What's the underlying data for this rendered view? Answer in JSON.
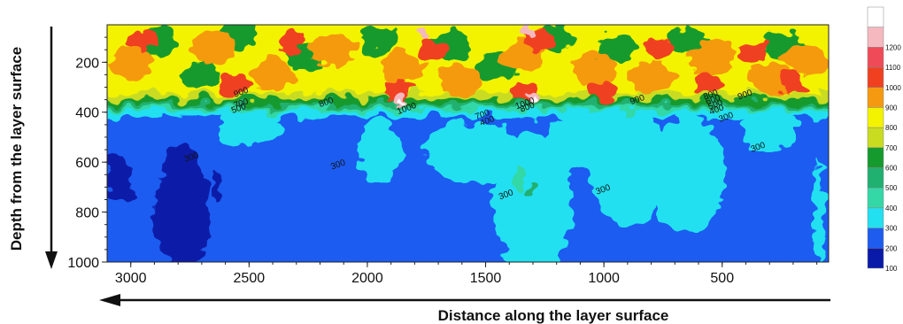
{
  "chart_data": {
    "type": "heatmap",
    "subtype": "filled-contour",
    "xlabel": "Distance along the layer surface",
    "ylabel": "Depth  from the layer surface",
    "x_direction": "reversed",
    "y_direction": "reversed",
    "xlim": [
      3100,
      50
    ],
    "ylim": [
      50,
      1000
    ],
    "x_ticks": [
      3000,
      2500,
      2000,
      1500,
      1000,
      500
    ],
    "y_ticks": [
      200,
      400,
      600,
      800,
      1000
    ],
    "grid": false,
    "legend": "right",
    "color_levels": [
      {
        "value": 100,
        "color": "#0a1aa8"
      },
      {
        "value": 200,
        "color": "#1e5cf0"
      },
      {
        "value": 300,
        "color": "#22e0f0"
      },
      {
        "value": 400,
        "color": "#33d8a6"
      },
      {
        "value": 500,
        "color": "#20b070"
      },
      {
        "value": 600,
        "color": "#159a2e"
      },
      {
        "value": 700,
        "color": "#c9dc20"
      },
      {
        "value": 800,
        "color": "#f3f300"
      },
      {
        "value": 900,
        "color": "#f59a10"
      },
      {
        "value": 1000,
        "color": "#f04020"
      },
      {
        "value": 1100,
        "color": "#ef4a58"
      },
      {
        "value": 1200,
        "color": "#f6b8bf"
      },
      {
        "value": null,
        "color": "#ffffff"
      }
    ],
    "contour_labels": [
      {
        "text": "900",
        "x": 2530,
        "y": 330
      },
      {
        "text": "700",
        "x": 2530,
        "y": 375
      },
      {
        "text": "500",
        "x": 2540,
        "y": 395
      },
      {
        "text": "800",
        "x": 2170,
        "y": 370
      },
      {
        "text": "1000",
        "x": 1830,
        "y": 395
      },
      {
        "text": "1000",
        "x": 1330,
        "y": 375
      },
      {
        "text": "800",
        "x": 1320,
        "y": 390
      },
      {
        "text": "900",
        "x": 855,
        "y": 360
      },
      {
        "text": "800",
        "x": 545,
        "y": 340
      },
      {
        "text": "600",
        "x": 535,
        "y": 360
      },
      {
        "text": "500",
        "x": 525,
        "y": 380
      },
      {
        "text": "400",
        "x": 520,
        "y": 400
      },
      {
        "text": "900",
        "x": 400,
        "y": 340
      },
      {
        "text": "300",
        "x": 480,
        "y": 430
      },
      {
        "text": "700",
        "x": 1510,
        "y": 420
      },
      {
        "text": "400",
        "x": 1490,
        "y": 445
      },
      {
        "text": "300",
        "x": 2740,
        "y": 590
      },
      {
        "text": "300",
        "x": 2120,
        "y": 620
      },
      {
        "text": "300",
        "x": 1410,
        "y": 740
      },
      {
        "text": "300",
        "x": 1000,
        "y": 720
      },
      {
        "text": "300",
        "x": 345,
        "y": 550
      }
    ]
  }
}
